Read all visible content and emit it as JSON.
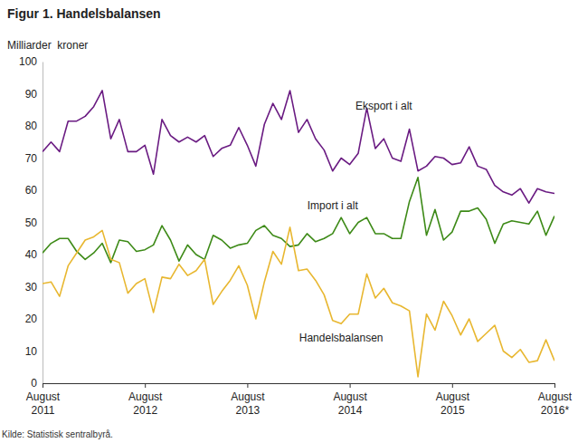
{
  "chart_data": {
    "type": "line",
    "title": "Figur 1. Handelsbalansen",
    "y_label": "Milliarder  kroner",
    "source": "Kilde: Statistisk sentralbyrå.",
    "categories": [
      "August 2011",
      null,
      null,
      null,
      null,
      null,
      null,
      null,
      null,
      null,
      null,
      null,
      "August 2012",
      null,
      null,
      null,
      null,
      null,
      null,
      null,
      null,
      null,
      null,
      null,
      "August 2013",
      null,
      null,
      null,
      null,
      null,
      null,
      null,
      null,
      null,
      null,
      null,
      "August 2014",
      null,
      null,
      null,
      null,
      null,
      null,
      null,
      null,
      null,
      null,
      null,
      "August 2015",
      null,
      null,
      null,
      null,
      null,
      null,
      null,
      null,
      null,
      null,
      null,
      "August 2016*"
    ],
    "series": [
      {
        "name": "Eksport i alt",
        "color": "#6a1b82",
        "values": [
          72,
          75,
          72,
          81.5,
          81.5,
          83,
          86,
          91,
          76,
          82,
          72,
          72,
          74,
          65,
          82,
          77,
          75,
          76.5,
          75,
          77,
          70.5,
          73,
          74,
          79.5,
          74,
          67.5,
          80.5,
          87,
          82,
          91,
          78,
          82,
          76,
          72.5,
          66,
          70,
          68,
          71.5,
          85.5,
          73,
          76,
          70,
          69,
          79,
          66,
          67.5,
          70.5,
          70,
          68,
          68.5,
          73.5,
          67.5,
          66.5,
          61.5,
          59.5,
          58.5,
          60.5,
          56,
          60.5,
          59.5,
          59
        ]
      },
      {
        "name": "Import i alt",
        "color": "#3d8a17",
        "values": [
          40.5,
          43.5,
          45,
          45,
          41,
          38.5,
          40.5,
          43.5,
          37.5,
          44.5,
          44,
          41,
          41.5,
          43,
          49,
          44.5,
          38,
          43,
          40,
          38.5,
          46,
          44.5,
          42,
          43,
          43.5,
          47.5,
          49,
          46,
          45,
          42.5,
          43,
          46.5,
          44,
          45,
          46.5,
          51.5,
          46.5,
          50,
          51.5,
          46.5,
          46.5,
          45,
          45,
          56.5,
          64,
          46,
          54,
          44.5,
          47,
          53.5,
          53.5,
          54.5,
          51,
          43.5,
          49.5,
          50.5,
          50,
          49.5,
          53.5,
          46,
          52
        ]
      },
      {
        "name": "Handelsbalansen",
        "color": "#e8b730",
        "values": [
          31,
          31.5,
          27,
          36.5,
          40.5,
          44.5,
          45.5,
          47.5,
          38.5,
          37.5,
          28,
          31,
          32.5,
          22,
          33,
          32.5,
          37,
          33.5,
          35,
          38.5,
          24.5,
          28.5,
          32,
          36.5,
          30.5,
          20,
          31.5,
          41,
          37,
          48.5,
          35,
          35.5,
          32,
          27.5,
          19.5,
          18.5,
          21.5,
          21.5,
          34,
          26.5,
          29.5,
          25,
          24,
          22.5,
          2,
          21.5,
          16.5,
          25.5,
          21,
          15,
          20,
          13,
          15.5,
          18,
          10,
          8,
          10.5,
          6.5,
          7,
          13.5,
          7
        ]
      }
    ],
    "ylim": [
      0,
      100
    ],
    "yticks": [
      0,
      10,
      20,
      30,
      40,
      50,
      60,
      70,
      80,
      90,
      100
    ],
    "grid": false
  }
}
